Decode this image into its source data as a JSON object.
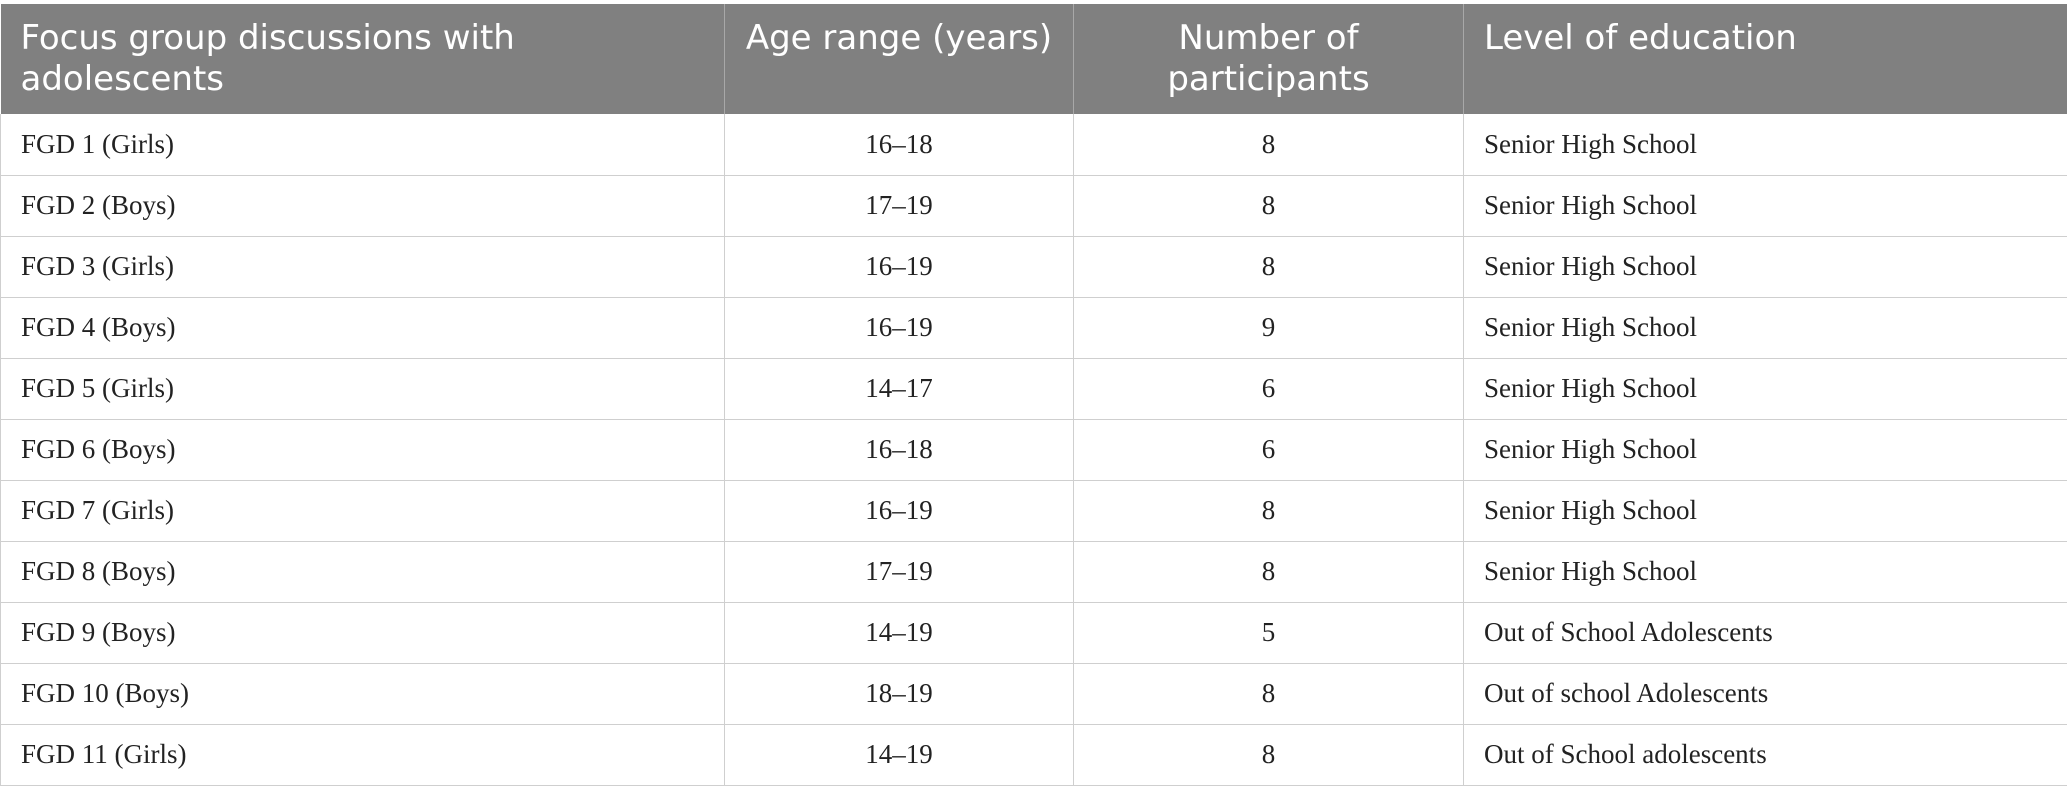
{
  "table": {
    "headers": [
      "Focus group discussions with adolescents",
      "Age range (years)",
      "Number of participants",
      "Level of education"
    ],
    "rows": [
      [
        "FGD 1 (Girls)",
        "16–18",
        "8",
        "Senior High School"
      ],
      [
        "FGD 2 (Boys)",
        "17–19",
        "8",
        "Senior High School"
      ],
      [
        "FGD 3 (Girls)",
        "16–19",
        "8",
        "Senior High School"
      ],
      [
        "FGD 4 (Boys)",
        "16–19",
        "9",
        "Senior High School"
      ],
      [
        "FGD 5 (Girls)",
        "14–17",
        "6",
        "Senior High School"
      ],
      [
        "FGD 6 (Boys)",
        "16–18",
        "6",
        "Senior High School"
      ],
      [
        "FGD 7 (Girls)",
        "16–19",
        "8",
        "Senior High School"
      ],
      [
        "FGD 8 (Boys)",
        "17–19",
        "8",
        "Senior High School"
      ],
      [
        "FGD 9 (Boys)",
        "14–19",
        "5",
        "Out of School Adolescents"
      ],
      [
        "FGD 10 (Boys)",
        "18–19",
        "8",
        "Out of school Adolescents"
      ],
      [
        "FGD 11 (Girls)",
        "14–19",
        "8",
        "Out of School adolescents"
      ]
    ]
  },
  "colors": {
    "header_background": "#808080",
    "header_text": "#ffffff",
    "grid_line": "#cfcfcf"
  }
}
